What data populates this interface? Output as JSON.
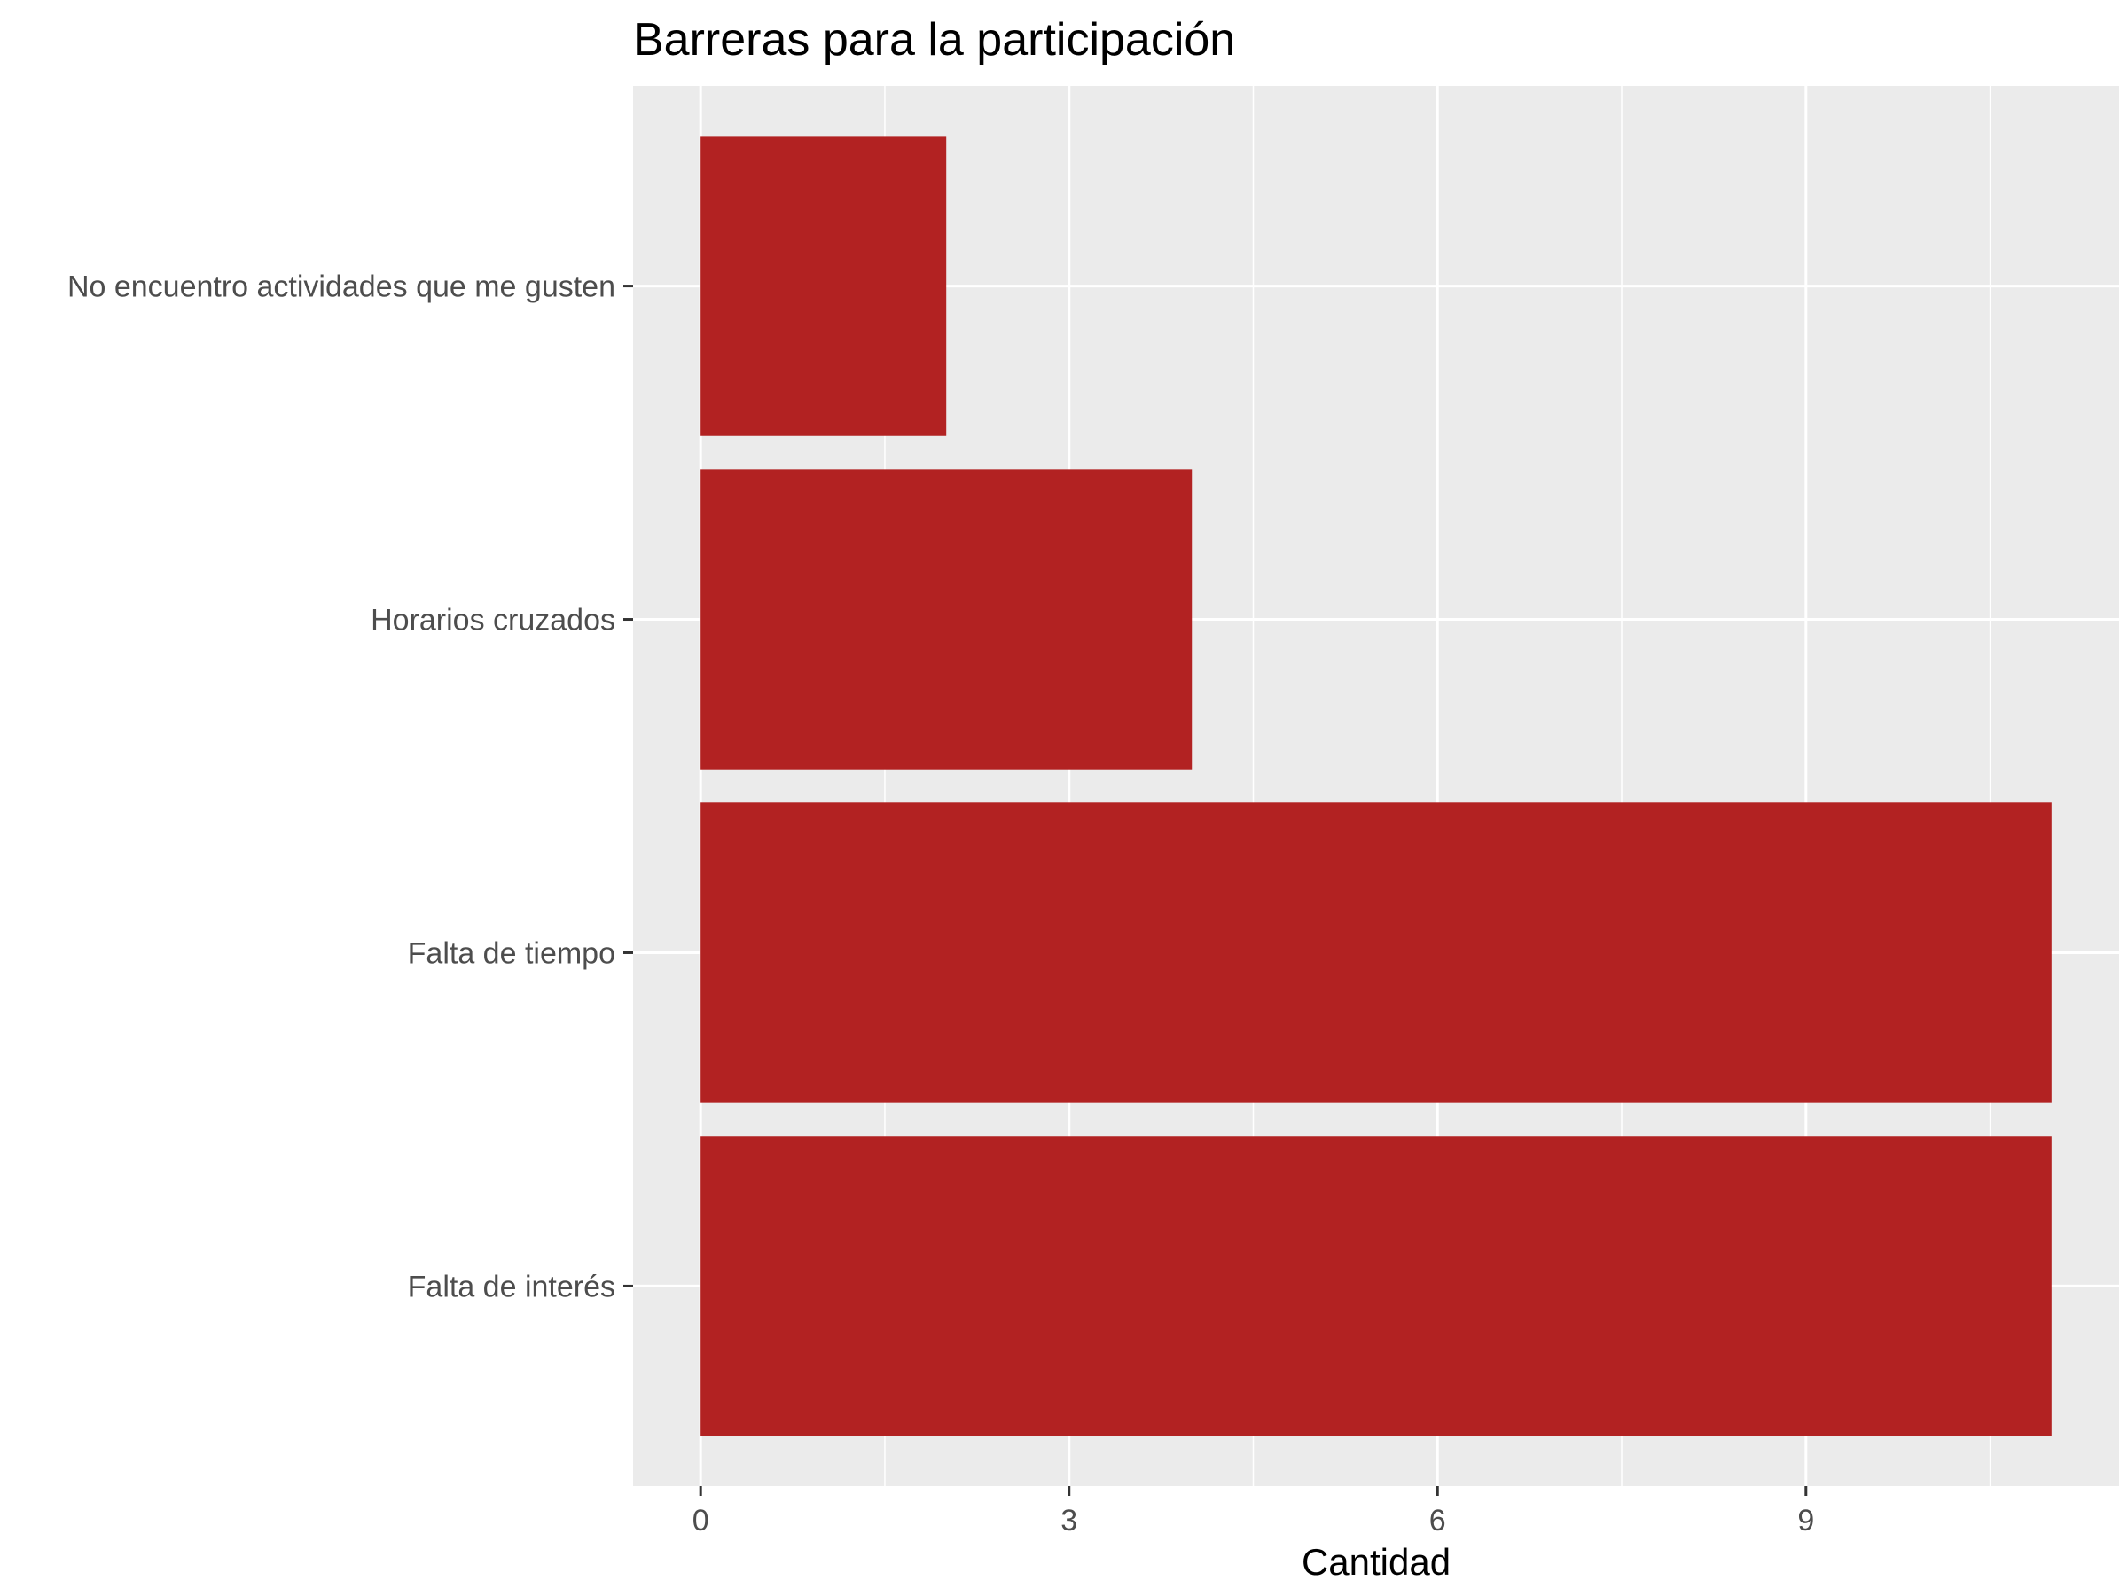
{
  "chart_data": {
    "type": "bar",
    "orientation": "horizontal",
    "title": "Barreras para la participación",
    "xlabel": "Cantidad",
    "ylabel": "",
    "categories": [
      "Falta de interés",
      "Falta de tiempo",
      "Horarios cruzados",
      "No encuentro actividades que me gusten"
    ],
    "values": [
      11,
      11,
      4,
      2
    ],
    "xlim": [
      -0.55,
      11.55
    ],
    "x_ticks": [
      0,
      3,
      6,
      9
    ],
    "x_tick_labels": [
      "0",
      "3",
      "6",
      "9"
    ],
    "grid": true,
    "legend": "none",
    "colors": {
      "bar": "#b22222",
      "panel": "#ebebeb",
      "grid": "#ffffff"
    }
  }
}
